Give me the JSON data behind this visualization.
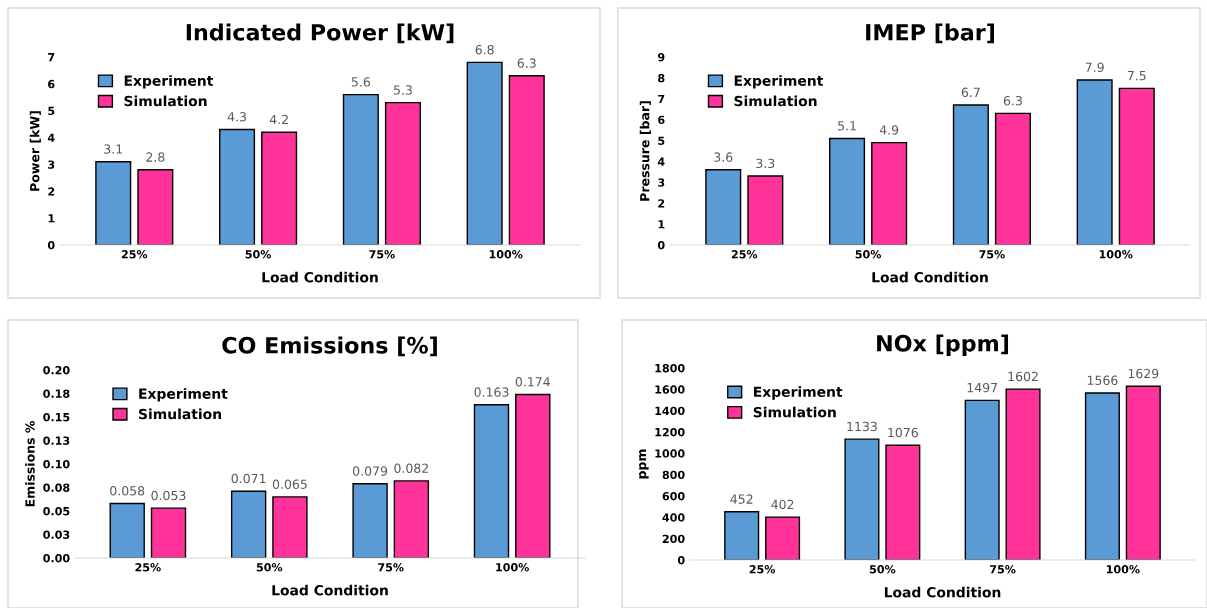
{
  "chart_data": [
    {
      "type": "bar",
      "title": "Indicated Power [kW]",
      "xlabel": "Load Condition",
      "ylabel": "Power [kW]",
      "categories": [
        "25%",
        "50%",
        "75%",
        "100%"
      ],
      "series": [
        {
          "name": "Experiment",
          "color": "#5b9bd5",
          "values": [
            3.1,
            4.3,
            5.6,
            6.8
          ]
        },
        {
          "name": "Simulation",
          "color": "#ff3399",
          "values": [
            2.8,
            4.2,
            5.3,
            6.3
          ]
        }
      ],
      "ylim": [
        0,
        7
      ],
      "yticks": [
        0,
        1,
        2,
        3,
        4,
        5,
        6,
        7
      ],
      "data_labels": true,
      "legend": "top left",
      "grid": false
    },
    {
      "type": "bar",
      "title": "IMEP [bar]",
      "xlabel": "Load Condition",
      "ylabel": "Pressure [bar]",
      "categories": [
        "25%",
        "50%",
        "75%",
        "100%"
      ],
      "series": [
        {
          "name": "Experiment",
          "color": "#5b9bd5",
          "values": [
            3.6,
            5.1,
            6.7,
            7.9
          ]
        },
        {
          "name": "Simulation",
          "color": "#ff3399",
          "values": [
            3.3,
            4.9,
            6.3,
            7.5
          ]
        }
      ],
      "ylim": [
        0,
        9
      ],
      "yticks": [
        0,
        1,
        2,
        3,
        4,
        5,
        6,
        7,
        8,
        9
      ],
      "data_labels": true,
      "legend": "top left",
      "grid": false
    },
    {
      "type": "bar",
      "title": "CO Emissions [%]",
      "xlabel": "Load Condition",
      "ylabel": "Emissions %",
      "categories": [
        "25%",
        "50%",
        "75%",
        "100%"
      ],
      "series": [
        {
          "name": "Experiment",
          "color": "#5b9bd5",
          "values": [
            0.058,
            0.071,
            0.079,
            0.163
          ]
        },
        {
          "name": "Simulation",
          "color": "#ff3399",
          "values": [
            0.053,
            0.065,
            0.082,
            0.174
          ]
        }
      ],
      "ylim": [
        0,
        0.2
      ],
      "yticks": [
        {
          "value": 0,
          "label": "0.00"
        },
        {
          "value": 0.025,
          "label": "0.03"
        },
        {
          "value": 0.05,
          "label": "0.05"
        },
        {
          "value": 0.075,
          "label": "0.08"
        },
        {
          "value": 0.1,
          "label": "0.10"
        },
        {
          "value": 0.125,
          "label": "0.13"
        },
        {
          "value": 0.15,
          "label": "0.15"
        },
        {
          "value": 0.175,
          "label": "0.18"
        },
        {
          "value": 0.2,
          "label": "0.20"
        }
      ],
      "data_labels": true,
      "legend": "top left",
      "grid": false
    },
    {
      "type": "bar",
      "title": "NOx [ppm]",
      "xlabel": "Load Condition",
      "ylabel": "ppm",
      "categories": [
        "25%",
        "50%",
        "75%",
        "100%"
      ],
      "series": [
        {
          "name": "Experiment",
          "color": "#5b9bd5",
          "values": [
            452,
            1133,
            1497,
            1566
          ]
        },
        {
          "name": "Simulation",
          "color": "#ff3399",
          "values": [
            402,
            1076,
            1602,
            1629
          ]
        }
      ],
      "ylim": [
        0,
        1800
      ],
      "yticks": [
        0,
        200,
        400,
        600,
        800,
        1000,
        1200,
        1400,
        1600,
        1800
      ],
      "data_labels": true,
      "legend": "top left",
      "grid": false
    }
  ]
}
